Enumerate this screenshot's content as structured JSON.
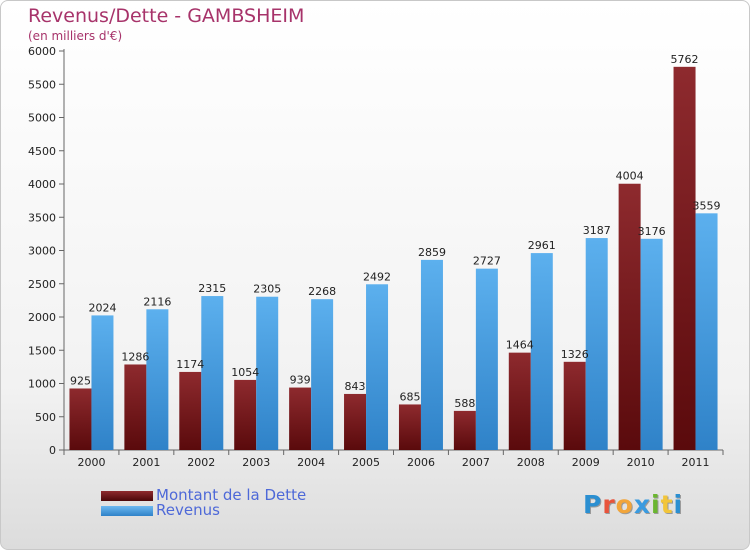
{
  "header": {
    "title": "Revenus/Dette - GAMBSHEIM",
    "subtitle": "(en milliers d'€)"
  },
  "colors": {
    "debt": "#7d1b1e",
    "revenue": "#4ea3e6",
    "title": "#a7336a",
    "legend_text": "#4e69d8"
  },
  "legend": {
    "position": "bottom-left",
    "items": [
      {
        "label": "Montant de la Dette",
        "color": "#7d1b1e"
      },
      {
        "label": "Revenus",
        "color": "#4ea3e6"
      }
    ]
  },
  "logo": {
    "text": "Proxiti",
    "colors": [
      "#2b8fd1",
      "#e8543c",
      "#f2a53a",
      "#3a9be0",
      "#6bb630",
      "#f2c53a",
      "#2b8fd1"
    ]
  },
  "chart_data": {
    "type": "bar",
    "categories": [
      "2000",
      "2001",
      "2002",
      "2003",
      "2004",
      "2005",
      "2006",
      "2007",
      "2008",
      "2009",
      "2010",
      "2011"
    ],
    "series": [
      {
        "name": "Montant de la Dette",
        "values": [
          925,
          1286,
          1174,
          1054,
          939,
          843,
          685,
          588,
          1464,
          1326,
          4004,
          5762
        ]
      },
      {
        "name": "Revenus",
        "values": [
          2024,
          2116,
          2315,
          2305,
          2268,
          2492,
          2859,
          2727,
          2961,
          3187,
          3176,
          3559
        ]
      }
    ],
    "ylim": [
      0,
      6000
    ],
    "yticks": [
      0,
      500,
      1000,
      1500,
      2000,
      2500,
      3000,
      3500,
      4000,
      4500,
      5000,
      5500,
      6000
    ],
    "grid": false,
    "xlabel": "",
    "ylabel": ""
  }
}
